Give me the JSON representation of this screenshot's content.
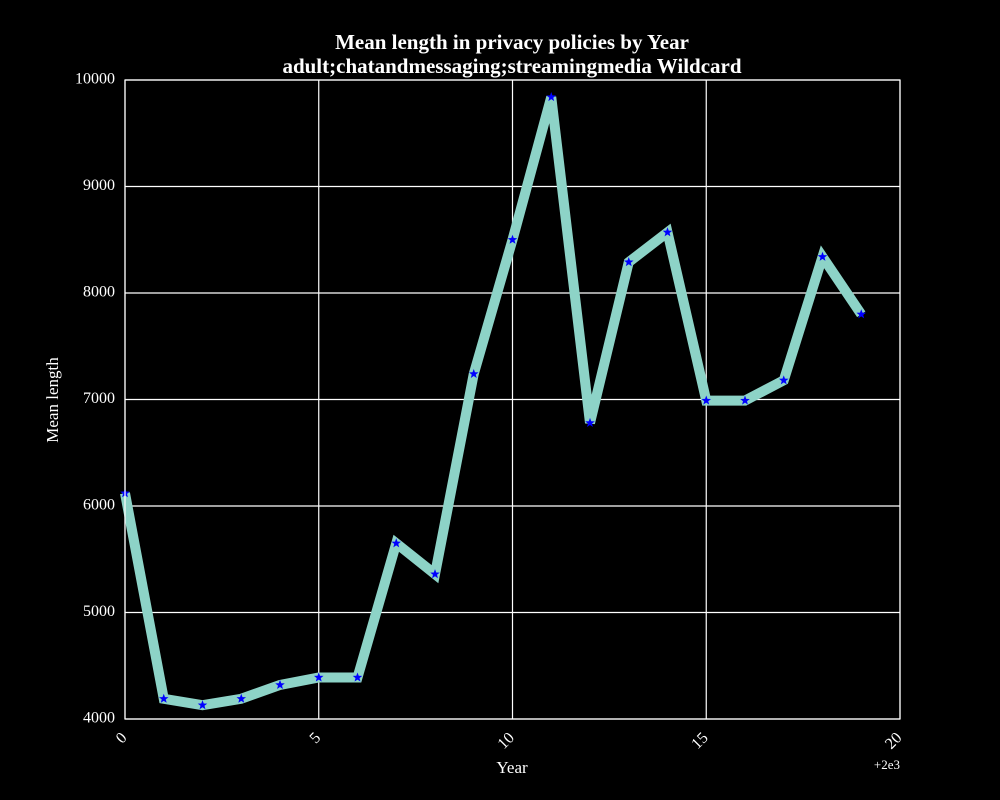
{
  "chart_data": {
    "type": "line",
    "title_line1": "Mean length in privacy policies by Year",
    "title_line2": "adult;chatandmessaging;streamingmedia Wildcard",
    "xlabel": "Year",
    "ylabel": "Mean length",
    "x_offset_label": "+2e3",
    "xlim": [
      0,
      20
    ],
    "ylim": [
      4000,
      10000
    ],
    "x_ticks": [
      0,
      5,
      10,
      15,
      20
    ],
    "x_tick_labels": [
      "0",
      "5",
      "10",
      "15",
      "20"
    ],
    "y_ticks": [
      4000,
      5000,
      6000,
      7000,
      8000,
      9000,
      10000
    ],
    "y_tick_labels": [
      "4000",
      "5000",
      "6000",
      "7000",
      "8000",
      "9000",
      "10000"
    ],
    "grid": true,
    "series": [
      {
        "x": [
          0,
          1,
          2,
          3,
          4,
          5,
          6,
          7,
          8,
          9,
          10,
          11,
          12,
          13,
          14,
          15,
          16,
          17,
          18,
          19
        ],
        "values": [
          6120,
          4190,
          4130,
          4190,
          4320,
          4390,
          4390,
          5650,
          5360,
          7240,
          8500,
          9840,
          6780,
          8290,
          8570,
          6990,
          6990,
          7180,
          8340,
          7800
        ],
        "line_color": "#8dd3c7",
        "marker_color": "#0000ff"
      }
    ]
  }
}
